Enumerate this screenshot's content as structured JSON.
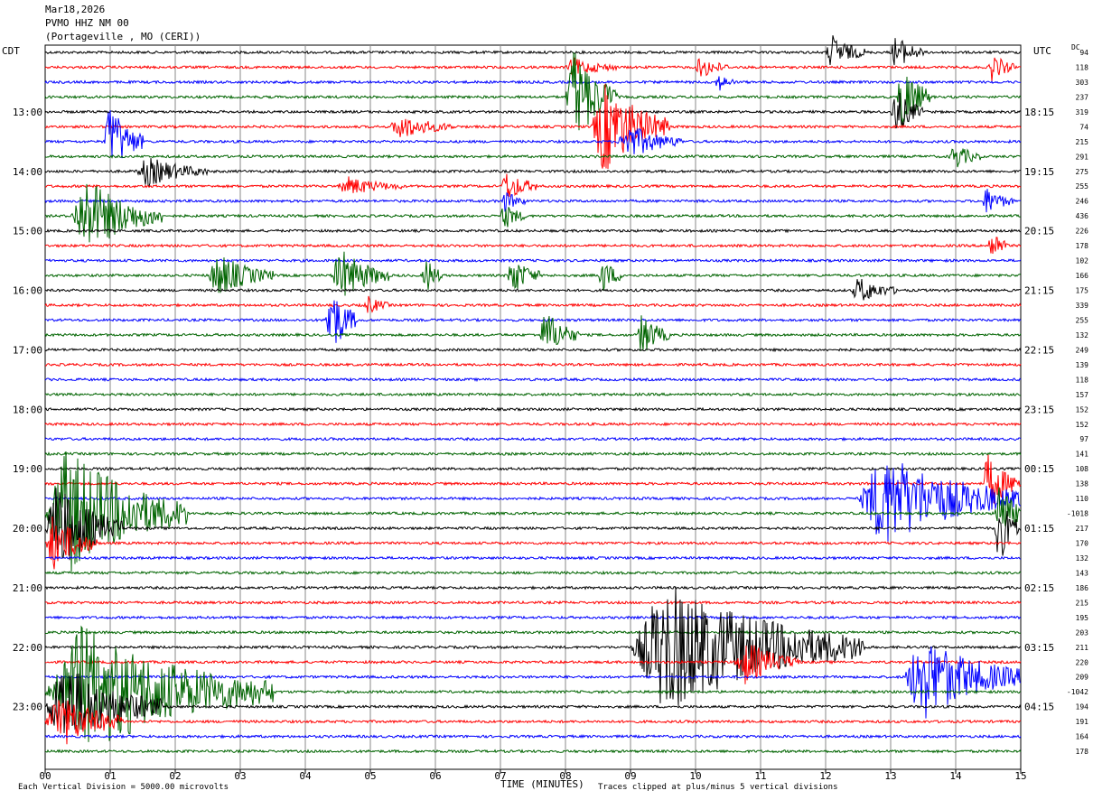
{
  "header": {
    "date": "Mar18,2026",
    "station": "PVMO HHZ NM 00",
    "location": "(Portageville , MO (CERI))"
  },
  "left_tz": "CDT",
  "right_tz": "UTC",
  "dc_label": "DC",
  "footer": {
    "scale_note": "Each Vertical Division = 5000.00 microvolts",
    "clip_note": "Traces clipped at plus/minus 5 vertical divisions",
    "xlabel": "TIME (MINUTES)"
  },
  "chart_data": {
    "type": "line",
    "xlabel": "TIME (MINUTES)",
    "xlim": [
      0,
      15
    ],
    "x_ticks": [
      "00",
      "01",
      "02",
      "03",
      "04",
      "05",
      "06",
      "07",
      "08",
      "09",
      "10",
      "11",
      "12",
      "13",
      "14",
      "15"
    ],
    "trace_count": 48,
    "trace_colors": [
      "#000000",
      "#ff0000",
      "#0000ff",
      "#006400"
    ],
    "left_labels": [
      {
        "row": 4,
        "text": "13:00"
      },
      {
        "row": 8,
        "text": "14:00"
      },
      {
        "row": 12,
        "text": "15:00"
      },
      {
        "row": 16,
        "text": "16:00"
      },
      {
        "row": 20,
        "text": "17:00"
      },
      {
        "row": 24,
        "text": "18:00"
      },
      {
        "row": 28,
        "text": "19:00"
      },
      {
        "row": 32,
        "text": "20:00"
      },
      {
        "row": 36,
        "text": "21:00"
      },
      {
        "row": 40,
        "text": "22:00"
      },
      {
        "row": 44,
        "text": "23:00"
      }
    ],
    "right_labels": [
      {
        "row": 4,
        "text": "18:15"
      },
      {
        "row": 8,
        "text": "19:15"
      },
      {
        "row": 12,
        "text": "20:15"
      },
      {
        "row": 16,
        "text": "21:15"
      },
      {
        "row": 20,
        "text": "22:15"
      },
      {
        "row": 24,
        "text": "23:15"
      },
      {
        "row": 28,
        "text": "00:15"
      },
      {
        "row": 32,
        "text": "01:15"
      },
      {
        "row": 36,
        "text": "02:15"
      },
      {
        "row": 40,
        "text": "03:15"
      },
      {
        "row": 44,
        "text": "04:15"
      }
    ],
    "dc_offsets": [
      "94",
      "118",
      "303",
      "237",
      "319",
      "74",
      "215",
      "291",
      "275",
      "255",
      "246",
      "436",
      "226",
      "178",
      "102",
      "166",
      "175",
      "339",
      "255",
      "132",
      "249",
      "139",
      "118",
      "157",
      "152",
      "152",
      "97",
      "141",
      "108",
      "138",
      "110",
      "-1018",
      "217",
      "170",
      "132",
      "143",
      "186",
      "215",
      "195",
      "203",
      "211",
      "220",
      "209",
      "-1042",
      "194",
      "191",
      "164",
      "178"
    ],
    "events": [
      {
        "row": 0,
        "start": 12.0,
        "end": 12.6,
        "amp": 1.2
      },
      {
        "row": 0,
        "start": 13.0,
        "end": 13.5,
        "amp": 1.2
      },
      {
        "row": 1,
        "start": 10.0,
        "end": 10.5,
        "amp": 0.8
      },
      {
        "row": 1,
        "start": 14.5,
        "end": 14.9,
        "amp": 1.0
      },
      {
        "row": 1,
        "start": 8.0,
        "end": 8.8,
        "amp": 0.6
      },
      {
        "row": 2,
        "start": 10.3,
        "end": 10.6,
        "amp": 0.6
      },
      {
        "row": 3,
        "start": 8.0,
        "end": 8.8,
        "amp": 3.5
      },
      {
        "row": 3,
        "start": 13.1,
        "end": 13.6,
        "amp": 2.5
      },
      {
        "row": 4,
        "start": 13.0,
        "end": 13.5,
        "amp": 1.6
      },
      {
        "row": 5,
        "start": 8.4,
        "end": 9.6,
        "amp": 3.2
      },
      {
        "row": 5,
        "start": 5.3,
        "end": 6.3,
        "amp": 0.8
      },
      {
        "row": 6,
        "start": 0.9,
        "end": 1.5,
        "amp": 2.6
      },
      {
        "row": 6,
        "start": 8.8,
        "end": 9.8,
        "amp": 1.2
      },
      {
        "row": 7,
        "start": 13.9,
        "end": 14.4,
        "amp": 0.9
      },
      {
        "row": 8,
        "start": 1.4,
        "end": 2.5,
        "amp": 1.0
      },
      {
        "row": 9,
        "start": 7.0,
        "end": 7.6,
        "amp": 1.0
      },
      {
        "row": 9,
        "start": 4.5,
        "end": 5.5,
        "amp": 0.6
      },
      {
        "row": 10,
        "start": 14.4,
        "end": 14.9,
        "amp": 0.9
      },
      {
        "row": 10,
        "start": 7.0,
        "end": 7.4,
        "amp": 0.7
      },
      {
        "row": 11,
        "start": 0.4,
        "end": 1.8,
        "amp": 2.6
      },
      {
        "row": 11,
        "start": 7.0,
        "end": 7.4,
        "amp": 0.9
      },
      {
        "row": 13,
        "start": 14.5,
        "end": 14.8,
        "amp": 1.3
      },
      {
        "row": 15,
        "start": 2.5,
        "end": 3.5,
        "amp": 1.5
      },
      {
        "row": 15,
        "start": 4.4,
        "end": 5.3,
        "amp": 1.8
      },
      {
        "row": 15,
        "start": 5.8,
        "end": 6.1,
        "amp": 1.4
      },
      {
        "row": 15,
        "start": 7.1,
        "end": 7.6,
        "amp": 1.4
      },
      {
        "row": 15,
        "start": 8.5,
        "end": 8.9,
        "amp": 1.2
      },
      {
        "row": 16,
        "start": 12.4,
        "end": 13.1,
        "amp": 0.9
      },
      {
        "row": 17,
        "start": 4.9,
        "end": 5.3,
        "amp": 0.6
      },
      {
        "row": 18,
        "start": 4.3,
        "end": 4.8,
        "amp": 2.6
      },
      {
        "row": 19,
        "start": 7.6,
        "end": 8.2,
        "amp": 1.7
      },
      {
        "row": 19,
        "start": 9.1,
        "end": 9.6,
        "amp": 1.5
      },
      {
        "row": 29,
        "start": 14.4,
        "end": 15.0,
        "amp": 2.0
      },
      {
        "row": 30,
        "start": 12.5,
        "end": 15.0,
        "amp": 3.2
      },
      {
        "row": 31,
        "start": 0.0,
        "end": 2.2,
        "amp": 4.5
      },
      {
        "row": 31,
        "start": 14.6,
        "end": 15.0,
        "amp": 2.5
      },
      {
        "row": 32,
        "start": 0.0,
        "end": 1.2,
        "amp": 3.0
      },
      {
        "row": 32,
        "start": 14.6,
        "end": 15.0,
        "amp": 2.5
      },
      {
        "row": 33,
        "start": 0.0,
        "end": 0.8,
        "amp": 2.0
      },
      {
        "row": 40,
        "start": 9.0,
        "end": 12.6,
        "amp": 4.5
      },
      {
        "row": 41,
        "start": 10.6,
        "end": 11.6,
        "amp": 1.5
      },
      {
        "row": 42,
        "start": 13.2,
        "end": 15.0,
        "amp": 3.0
      },
      {
        "row": 43,
        "start": 0.0,
        "end": 3.5,
        "amp": 4.5
      },
      {
        "row": 44,
        "start": 0.0,
        "end": 1.8,
        "amp": 3.0
      },
      {
        "row": 45,
        "start": 0.0,
        "end": 1.2,
        "amp": 2.0
      }
    ]
  }
}
